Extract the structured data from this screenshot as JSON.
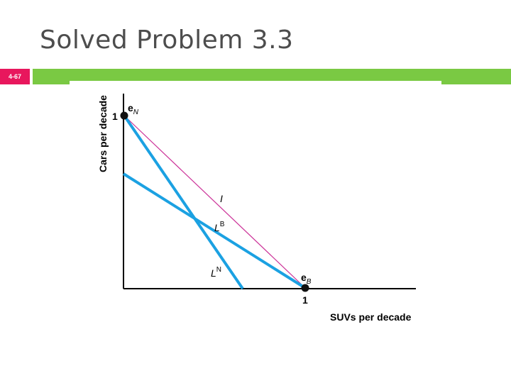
{
  "slide": {
    "title": "Solved Problem 3.3",
    "number": "4-67"
  },
  "colors": {
    "accent_green": "#7ac943",
    "number_badge": "#e8175d",
    "budget_lines": "#1ba1e2",
    "indifference": "#cc3399",
    "axis": "#000000"
  },
  "diagram": {
    "y_axis_label": "Cars per decade",
    "x_axis_label": "SUVs per decade",
    "y_tick": "1",
    "x_tick": "1",
    "point_top": {
      "base": "e",
      "sub": "N"
    },
    "point_bottom": {
      "base": "e",
      "sub": "B"
    },
    "line_I": "I",
    "line_LB": {
      "base": "L",
      "sup": "B"
    },
    "line_LN": {
      "base": "L",
      "sup": "N"
    }
  }
}
